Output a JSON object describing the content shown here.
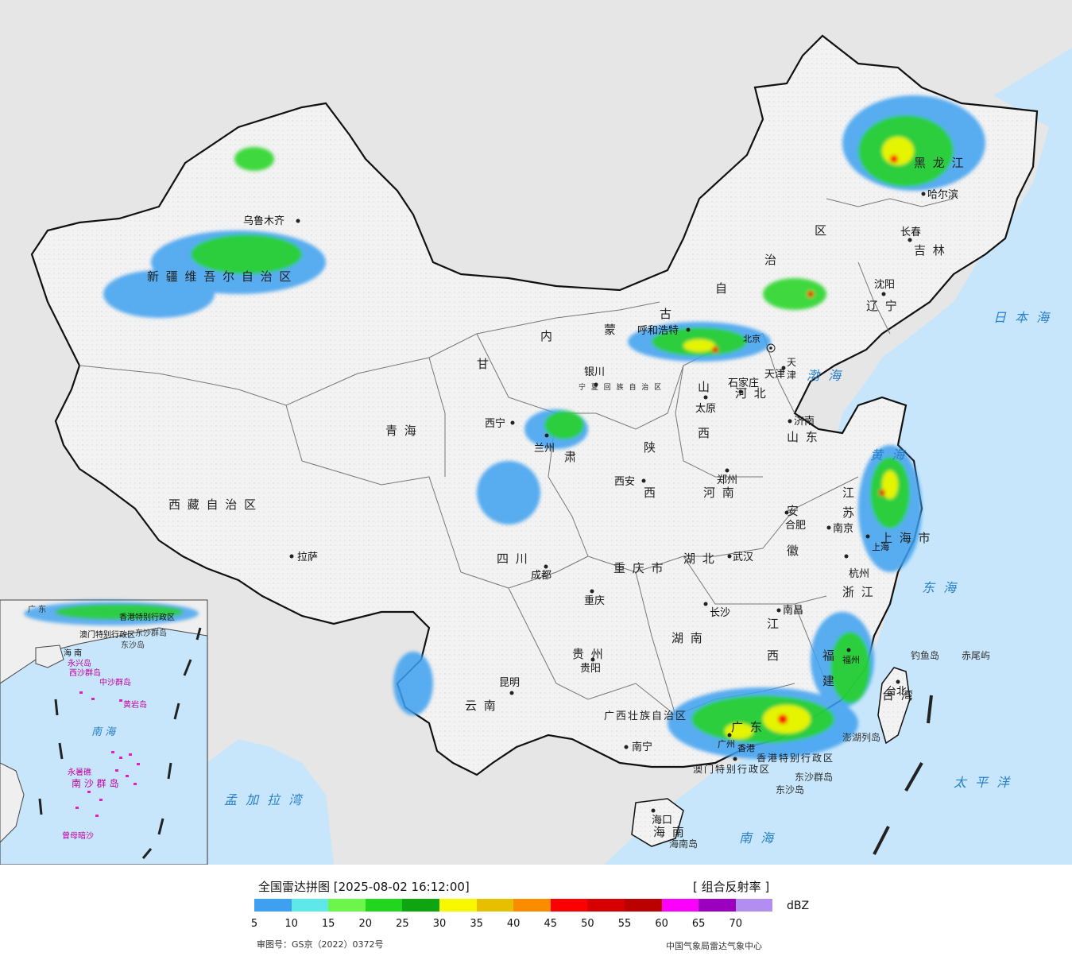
{
  "legend": {
    "title": "全国雷达拼图 [2025-08-02 16:12:00]",
    "product": "[ 组合反射率 ]",
    "unit": "dBZ",
    "ticks": [
      "5",
      "10",
      "15",
      "20",
      "25",
      "30",
      "35",
      "40",
      "45",
      "50",
      "55",
      "60",
      "65",
      "70"
    ],
    "colors": [
      "#3ea0f0",
      "#5fe8e8",
      "#6cf54a",
      "#22d51e",
      "#0ea510",
      "#f8f800",
      "#e6c000",
      "#fb8c00",
      "#fb0000",
      "#d60000",
      "#bb0000",
      "#fb00fb",
      "#9b00bf",
      "#b28ef0"
    ],
    "review_no": "审图号：GS京（2022）0372号",
    "credit": "中国气象局雷达气象中心"
  },
  "map": {
    "cities": [
      {
        "name": "乌鲁木齐"
      },
      {
        "name": "拉萨"
      },
      {
        "name": "西宁"
      },
      {
        "name": "兰州"
      },
      {
        "name": "银川"
      },
      {
        "name": "呼和浩特"
      },
      {
        "name": "北京"
      },
      {
        "name": "天津"
      },
      {
        "name": "石家庄"
      },
      {
        "name": "太原"
      },
      {
        "name": "济南"
      },
      {
        "name": "郑州"
      },
      {
        "name": "西安"
      },
      {
        "name": "成都"
      },
      {
        "name": "重庆"
      },
      {
        "name": "武汉"
      },
      {
        "name": "合肥"
      },
      {
        "name": "南京"
      },
      {
        "name": "上海"
      },
      {
        "name": "杭州"
      },
      {
        "name": "南昌"
      },
      {
        "name": "长沙"
      },
      {
        "name": "贵阳"
      },
      {
        "name": "昆明"
      },
      {
        "name": "南宁"
      },
      {
        "name": "广州"
      },
      {
        "name": "香港"
      },
      {
        "name": "海口"
      },
      {
        "name": "福州"
      },
      {
        "name": "台北"
      },
      {
        "name": "哈尔滨"
      },
      {
        "name": "长春"
      },
      {
        "name": "沈阳"
      }
    ],
    "regions": [
      {
        "name": "新 疆 维 吾 尔 自 治 区"
      },
      {
        "name": "西 藏 自 治 区"
      },
      {
        "name": "青 海"
      },
      {
        "name": "甘"
      },
      {
        "name": "肃"
      },
      {
        "name": "四 川"
      },
      {
        "name": "云 南"
      },
      {
        "name": "内"
      },
      {
        "name": "蒙"
      },
      {
        "name": "古"
      },
      {
        "name": "自"
      },
      {
        "name": "治"
      },
      {
        "name": "区"
      },
      {
        "name": "黑 龙 江"
      },
      {
        "name": "吉 林"
      },
      {
        "name": "辽 宁"
      },
      {
        "name": "河 北"
      },
      {
        "name": "山"
      },
      {
        "name": "西"
      },
      {
        "name": "山 东"
      },
      {
        "name": "河 南"
      },
      {
        "name": "陕"
      },
      {
        "name": "西"
      },
      {
        "name": "湖 北"
      },
      {
        "name": "湖 南"
      },
      {
        "name": "江"
      },
      {
        "name": "西"
      },
      {
        "name": "安"
      },
      {
        "name": "徽"
      },
      {
        "name": "江"
      },
      {
        "name": "苏"
      },
      {
        "name": "浙 江"
      },
      {
        "name": "福"
      },
      {
        "name": "建"
      },
      {
        "name": "广 东"
      },
      {
        "name": "贵 州"
      },
      {
        "name": "重 庆 市"
      },
      {
        "name": "上 海 市"
      },
      {
        "name": "台 湾"
      },
      {
        "name": "海 南"
      },
      {
        "name": "宁 夏 回 族 自 治 区"
      },
      {
        "name": "广西壮族自治区"
      },
      {
        "name": "天"
      },
      {
        "name": "津"
      },
      {
        "name": "香港特别行政区"
      },
      {
        "name": "澳门特别行政区"
      }
    ],
    "seas": [
      {
        "name": "日 本 海"
      },
      {
        "name": "渤 海"
      },
      {
        "name": "黄 海"
      },
      {
        "name": "东 海"
      },
      {
        "name": "太 平 洋"
      },
      {
        "name": "南 海"
      },
      {
        "name": "孟 加 拉 湾"
      }
    ],
    "islands": [
      {
        "name": "钓鱼岛"
      },
      {
        "name": "赤尾屿"
      },
      {
        "name": "东沙群岛"
      },
      {
        "name": "东沙岛"
      },
      {
        "name": "海南岛"
      },
      {
        "name": "澎湖列岛"
      }
    ],
    "inset": {
      "labels": [
        {
          "name": "广 东"
        },
        {
          "name": "香港特别行政区"
        },
        {
          "name": "澳门特别行政区"
        },
        {
          "name": "东沙群岛"
        },
        {
          "name": "东沙岛"
        },
        {
          "name": "海 南"
        },
        {
          "name": "西沙群岛"
        },
        {
          "name": "永兴岛"
        },
        {
          "name": "中沙群岛"
        },
        {
          "name": "黄岩岛"
        },
        {
          "name": "南 海"
        },
        {
          "name": "南 沙 群 岛"
        },
        {
          "name": "永暑礁"
        },
        {
          "name": "曾母暗沙"
        }
      ]
    }
  }
}
